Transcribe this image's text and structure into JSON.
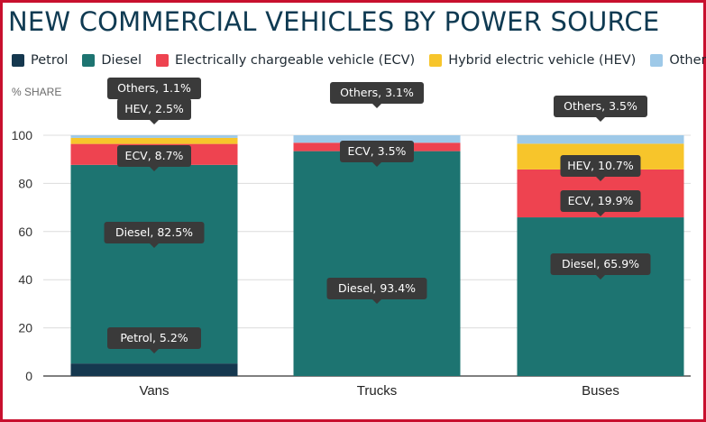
{
  "header": {
    "title": "NEW COMMERCIAL VEHICLES BY POWER SOURCE"
  },
  "legend": [
    {
      "key": "petrol",
      "label": "Petrol",
      "color": "#15384f"
    },
    {
      "key": "diesel",
      "label": "Diesel",
      "color": "#1d7471"
    },
    {
      "key": "ecv",
      "label": "Electrically chargeable vehicle (ECV)",
      "color": "#ee4350"
    },
    {
      "key": "hev",
      "label": "Hybrid electric vehicle (HEV)",
      "color": "#f7c52b"
    },
    {
      "key": "others",
      "label": "Others",
      "color": "#9ec9e8"
    }
  ],
  "chart_data": {
    "type": "bar",
    "stacked": true,
    "title": "NEW COMMERCIAL VEHICLES BY POWER SOURCE",
    "ylabel": "% SHARE",
    "ylim": [
      0,
      100
    ],
    "yticks": [
      "0",
      "20",
      "40",
      "60",
      "80",
      "100"
    ],
    "grid": true,
    "legend_position": "top",
    "categories": [
      "Vans",
      "Trucks",
      "Buses"
    ],
    "series": [
      {
        "name": "Petrol",
        "values": [
          5.2,
          0,
          0
        ]
      },
      {
        "name": "Diesel",
        "values": [
          82.5,
          93.4,
          65.9
        ]
      },
      {
        "name": "Electrically chargeable vehicle (ECV)",
        "values": [
          8.7,
          3.5,
          19.9
        ]
      },
      {
        "name": "Hybrid electric vehicle (HEV)",
        "values": [
          2.5,
          0,
          10.7
        ]
      },
      {
        "name": "Others",
        "values": [
          1.1,
          3.1,
          3.5
        ]
      }
    ],
    "tooltips": [
      {
        "text": "Others, 1.1%",
        "category": 0,
        "series": 4
      },
      {
        "text": "HEV, 2.5%",
        "category": 0,
        "series": 3
      },
      {
        "text": "ECV, 8.7%",
        "category": 0,
        "series": 2
      },
      {
        "text": "Diesel, 82.5%",
        "category": 0,
        "series": 1
      },
      {
        "text": "Petrol, 5.2%",
        "category": 0,
        "series": 0
      },
      {
        "text": "Others, 3.1%",
        "category": 1,
        "series": 4
      },
      {
        "text": "ECV, 3.5%",
        "category": 1,
        "series": 2
      },
      {
        "text": "Diesel, 93.4%",
        "category": 1,
        "series": 1
      },
      {
        "text": "Others, 3.5%",
        "category": 2,
        "series": 4
      },
      {
        "text": "HEV, 10.7%",
        "category": 2,
        "series": 3
      },
      {
        "text": "ECV, 19.9%",
        "category": 2,
        "series": 2
      },
      {
        "text": "Diesel, 65.9%",
        "category": 2,
        "series": 1
      }
    ]
  }
}
